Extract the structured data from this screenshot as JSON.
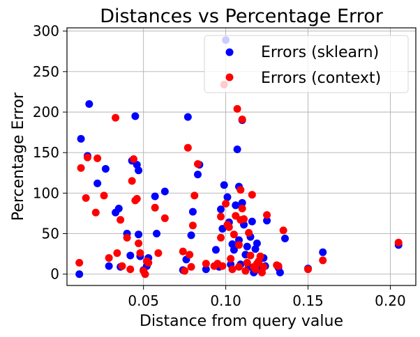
{
  "chart_data": {
    "type": "scatter",
    "title": "Distances vs Percentage Error",
    "xlabel": "Distance from query value",
    "ylabel": "Percentage Error",
    "xlim": [
      0.0035,
      0.2155
    ],
    "ylim": [
      -14,
      304
    ],
    "xticks": [
      0.05,
      0.1,
      0.15,
      0.2
    ],
    "xtick_labels": [
      "0.05",
      "0.10",
      "0.15",
      "0.20"
    ],
    "yticks": [
      0,
      50,
      100,
      150,
      200,
      250,
      300
    ],
    "ytick_labels": [
      "0",
      "50",
      "100",
      "150",
      "200",
      "250",
      "300"
    ],
    "grid": true,
    "legend_position": "top-right",
    "series": [
      {
        "name": "Errors (sklearn)",
        "color": "#0000ff",
        "points": [
          [
            0.011,
            0
          ],
          [
            0.012,
            167
          ],
          [
            0.016,
            146
          ],
          [
            0.017,
            210
          ],
          [
            0.022,
            112
          ],
          [
            0.027,
            130
          ],
          [
            0.029,
            10
          ],
          [
            0.033,
            76
          ],
          [
            0.035,
            81
          ],
          [
            0.036,
            9
          ],
          [
            0.04,
            50
          ],
          [
            0.042,
            23
          ],
          [
            0.043,
            140
          ],
          [
            0.045,
            195
          ],
          [
            0.046,
            135
          ],
          [
            0.047,
            128
          ],
          [
            0.047,
            49
          ],
          [
            0.048,
            22
          ],
          [
            0.05,
            5
          ],
          [
            0.052,
            10
          ],
          [
            0.053,
            20
          ],
          [
            0.057,
            96
          ],
          [
            0.058,
            50
          ],
          [
            0.063,
            102
          ],
          [
            0.074,
            5
          ],
          [
            0.076,
            18
          ],
          [
            0.077,
            194
          ],
          [
            0.079,
            48
          ],
          [
            0.08,
            77
          ],
          [
            0.083,
            123
          ],
          [
            0.084,
            135
          ],
          [
            0.088,
            6
          ],
          [
            0.094,
            30
          ],
          [
            0.096,
            9
          ],
          [
            0.097,
            80
          ],
          [
            0.098,
            56
          ],
          [
            0.099,
            110
          ],
          [
            0.1,
            289
          ],
          [
            0.101,
            95
          ],
          [
            0.102,
            64
          ],
          [
            0.103,
            12
          ],
          [
            0.104,
            37
          ],
          [
            0.105,
            30
          ],
          [
            0.106,
            85
          ],
          [
            0.107,
            154
          ],
          [
            0.108,
            108
          ],
          [
            0.108,
            42
          ],
          [
            0.109,
            12
          ],
          [
            0.11,
            190
          ],
          [
            0.11,
            88
          ],
          [
            0.111,
            61
          ],
          [
            0.112,
            24
          ],
          [
            0.113,
            34
          ],
          [
            0.114,
            9
          ],
          [
            0.115,
            46
          ],
          [
            0.116,
            65
          ],
          [
            0.117,
            2
          ],
          [
            0.118,
            31
          ],
          [
            0.119,
            38
          ],
          [
            0.12,
            14
          ],
          [
            0.121,
            5
          ],
          [
            0.122,
            6
          ],
          [
            0.123,
            20
          ],
          [
            0.124,
            10
          ],
          [
            0.125,
            66
          ],
          [
            0.132,
            8
          ],
          [
            0.133,
            2
          ],
          [
            0.136,
            44
          ],
          [
            0.15,
            7
          ],
          [
            0.159,
            27
          ],
          [
            0.205,
            36
          ]
        ]
      },
      {
        "name": "Errors (context)",
        "color": "#ff0000",
        "points": [
          [
            0.011,
            14
          ],
          [
            0.012,
            131
          ],
          [
            0.015,
            94
          ],
          [
            0.016,
            144
          ],
          [
            0.021,
            76
          ],
          [
            0.022,
            143
          ],
          [
            0.026,
            97
          ],
          [
            0.029,
            20
          ],
          [
            0.033,
            193
          ],
          [
            0.034,
            26
          ],
          [
            0.036,
            67
          ],
          [
            0.037,
            10
          ],
          [
            0.04,
            45
          ],
          [
            0.042,
            6
          ],
          [
            0.043,
            115
          ],
          [
            0.044,
            142
          ],
          [
            0.045,
            91
          ],
          [
            0.046,
            93
          ],
          [
            0.047,
            38
          ],
          [
            0.048,
            26
          ],
          [
            0.05,
            4
          ],
          [
            0.051,
            0
          ],
          [
            0.052,
            16
          ],
          [
            0.053,
            14
          ],
          [
            0.057,
            82
          ],
          [
            0.059,
            26
          ],
          [
            0.063,
            69
          ],
          [
            0.074,
            28
          ],
          [
            0.075,
            4
          ],
          [
            0.077,
            156
          ],
          [
            0.078,
            24
          ],
          [
            0.079,
            9
          ],
          [
            0.08,
            60
          ],
          [
            0.081,
            97
          ],
          [
            0.083,
            136
          ],
          [
            0.088,
            13
          ],
          [
            0.093,
            10
          ],
          [
            0.095,
            13
          ],
          [
            0.097,
            71
          ],
          [
            0.097,
            45
          ],
          [
            0.098,
            10
          ],
          [
            0.099,
            234
          ],
          [
            0.1,
            87
          ],
          [
            0.101,
            61
          ],
          [
            0.102,
            58
          ],
          [
            0.103,
            19
          ],
          [
            0.104,
            6
          ],
          [
            0.105,
            49
          ],
          [
            0.106,
            72
          ],
          [
            0.107,
            204
          ],
          [
            0.108,
            36
          ],
          [
            0.108,
            9
          ],
          [
            0.109,
            104
          ],
          [
            0.109,
            67
          ],
          [
            0.11,
            81
          ],
          [
            0.11,
            191
          ],
          [
            0.111,
            68
          ],
          [
            0.112,
            4
          ],
          [
            0.113,
            14
          ],
          [
            0.114,
            51
          ],
          [
            0.115,
            23
          ],
          [
            0.116,
            98
          ],
          [
            0.117,
            9
          ],
          [
            0.118,
            6
          ],
          [
            0.119,
            13
          ],
          [
            0.12,
            16
          ],
          [
            0.121,
            22
          ],
          [
            0.122,
            2
          ],
          [
            0.123,
            9
          ],
          [
            0.125,
            73
          ],
          [
            0.131,
            11
          ],
          [
            0.132,
            10
          ],
          [
            0.135,
            54
          ],
          [
            0.15,
            6
          ],
          [
            0.159,
            17
          ],
          [
            0.205,
            39
          ]
        ]
      }
    ]
  }
}
